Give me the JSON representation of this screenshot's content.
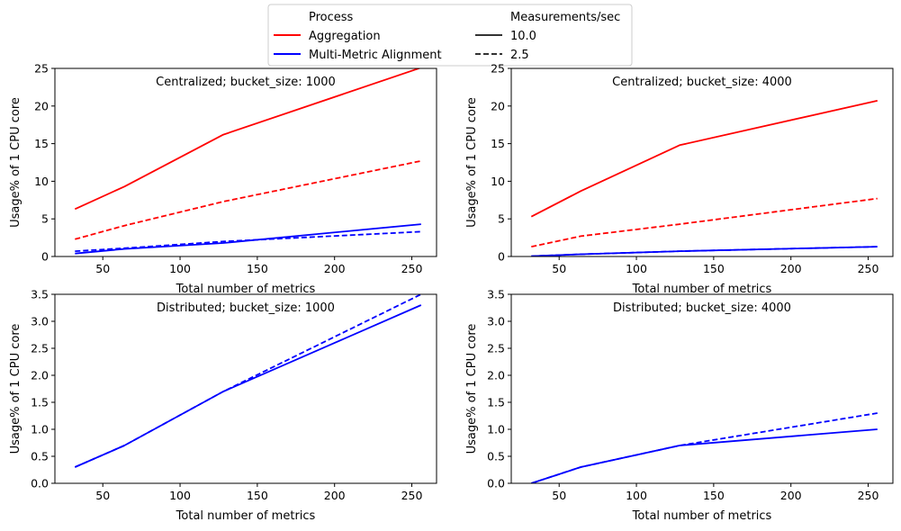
{
  "legend": {
    "process_title": "Process",
    "rate_title": "Measurements/sec",
    "process_entries": [
      {
        "label": "Aggregation",
        "color": "#ff0000"
      },
      {
        "label": "Multi-Metric Alignment",
        "color": "#0000ff"
      }
    ],
    "rate_entries": [
      {
        "label": "10.0",
        "style": "solid"
      },
      {
        "label": "2.5",
        "style": "dashed"
      }
    ]
  },
  "chart_data": [
    {
      "type": "line",
      "title": "Centralized; bucket_size: 1000",
      "xlabel": "Total number of metrics",
      "ylabel": "Usage% of 1 CPU core",
      "xlim": [
        19,
        266
      ],
      "ylim": [
        0,
        25
      ],
      "xticks": [
        50,
        100,
        150,
        200,
        250
      ],
      "yticks": [
        0,
        5,
        10,
        15,
        20,
        25
      ],
      "series": [
        {
          "process": "Aggregation",
          "rate": "10.0",
          "color": "#ff0000",
          "dash": false,
          "x": [
            32,
            64,
            128,
            256
          ],
          "y": [
            6.3,
            9.3,
            16.2,
            25.1
          ]
        },
        {
          "process": "Aggregation",
          "rate": "2.5",
          "color": "#ff0000",
          "dash": true,
          "x": [
            32,
            64,
            128,
            256
          ],
          "y": [
            2.3,
            4.1,
            7.3,
            12.7
          ]
        },
        {
          "process": "Multi-Metric Alignment",
          "rate": "10.0",
          "color": "#0000ff",
          "dash": false,
          "x": [
            32,
            64,
            128,
            256
          ],
          "y": [
            0.4,
            1.0,
            1.8,
            4.3
          ]
        },
        {
          "process": "Multi-Metric Alignment",
          "rate": "2.5",
          "color": "#0000ff",
          "dash": true,
          "x": [
            32,
            64,
            128,
            256
          ],
          "y": [
            0.7,
            1.1,
            2.0,
            3.3
          ]
        }
      ]
    },
    {
      "type": "line",
      "title": "Centralized; bucket_size: 4000",
      "xlabel": "Total number of metrics",
      "ylabel": "Usage% of 1 CPU core",
      "xlim": [
        19,
        266
      ],
      "ylim": [
        0,
        25
      ],
      "xticks": [
        50,
        100,
        150,
        200,
        250
      ],
      "yticks": [
        0,
        5,
        10,
        15,
        20,
        25
      ],
      "series": [
        {
          "process": "Aggregation",
          "rate": "10.0",
          "color": "#ff0000",
          "dash": false,
          "x": [
            32,
            64,
            128,
            256
          ],
          "y": [
            5.3,
            8.7,
            14.8,
            20.7
          ]
        },
        {
          "process": "Aggregation",
          "rate": "2.5",
          "color": "#ff0000",
          "dash": true,
          "x": [
            32,
            64,
            128,
            256
          ],
          "y": [
            1.3,
            2.7,
            4.3,
            7.7
          ]
        },
        {
          "process": "Multi-Metric Alignment",
          "rate": "10.0",
          "color": "#0000ff",
          "dash": false,
          "x": [
            32,
            64,
            128,
            256
          ],
          "y": [
            0.05,
            0.3,
            0.7,
            1.3
          ]
        },
        {
          "process": "Multi-Metric Alignment",
          "rate": "2.5",
          "color": "#0000ff",
          "dash": true,
          "x": [
            32,
            64,
            128,
            256
          ],
          "y": [
            0.05,
            0.3,
            0.7,
            1.3
          ]
        }
      ]
    },
    {
      "type": "line",
      "title": "Distributed; bucket_size: 1000",
      "xlabel": "Total number of metrics",
      "ylabel": "Usage% of 1 CPU core",
      "xlim": [
        19,
        266
      ],
      "ylim": [
        0,
        3.5
      ],
      "xticks": [
        50,
        100,
        150,
        200,
        250
      ],
      "yticks": [
        0.0,
        0.5,
        1.0,
        1.5,
        2.0,
        2.5,
        3.0,
        3.5
      ],
      "series": [
        {
          "process": "Multi-Metric Alignment",
          "rate": "10.0",
          "color": "#0000ff",
          "dash": false,
          "x": [
            32,
            64,
            128,
            256
          ],
          "y": [
            0.3,
            0.7,
            1.7,
            3.3
          ]
        },
        {
          "process": "Multi-Metric Alignment",
          "rate": "2.5",
          "color": "#0000ff",
          "dash": true,
          "x": [
            32,
            64,
            128,
            256
          ],
          "y": [
            0.3,
            0.7,
            1.7,
            3.5
          ]
        }
      ]
    },
    {
      "type": "line",
      "title": "Distributed; bucket_size: 4000",
      "xlabel": "Total number of metrics",
      "ylabel": "Usage% of 1 CPU core",
      "xlim": [
        19,
        266
      ],
      "ylim": [
        0,
        3.5
      ],
      "xticks": [
        50,
        100,
        150,
        200,
        250
      ],
      "yticks": [
        0.0,
        0.5,
        1.0,
        1.5,
        2.0,
        2.5,
        3.0,
        3.5
      ],
      "series": [
        {
          "process": "Multi-Metric Alignment",
          "rate": "10.0",
          "color": "#0000ff",
          "dash": false,
          "x": [
            32,
            64,
            128,
            256
          ],
          "y": [
            0.0,
            0.3,
            0.7,
            1.0
          ]
        },
        {
          "process": "Multi-Metric Alignment",
          "rate": "2.5",
          "color": "#0000ff",
          "dash": true,
          "x": [
            32,
            64,
            128,
            256
          ],
          "y": [
            0.0,
            0.3,
            0.7,
            1.3
          ]
        }
      ]
    }
  ]
}
